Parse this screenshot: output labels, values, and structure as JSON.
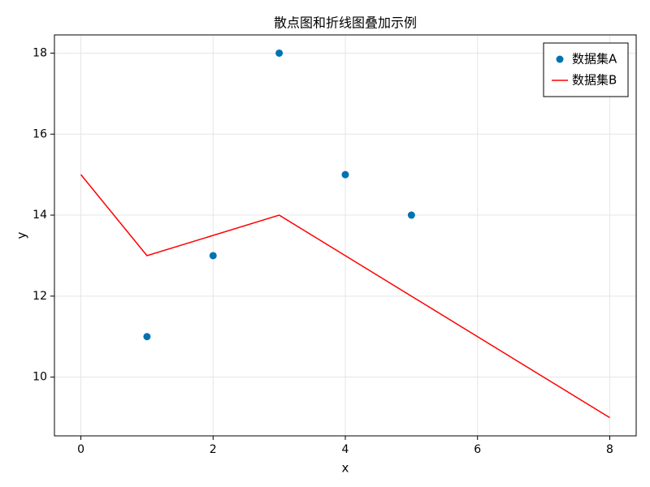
{
  "chart_data": {
    "type": "scatter",
    "title": "散点图和折线图叠加示例",
    "xlabel": "x",
    "ylabel": "y",
    "xlim": [
      -0.4,
      8.4
    ],
    "ylim": [
      8.55,
      18.45
    ],
    "xticks": [
      0,
      2,
      4,
      6,
      8
    ],
    "yticks": [
      10,
      12,
      14,
      16,
      18
    ],
    "grid": true,
    "legend": "upper right",
    "series": [
      {
        "name": "数据集A",
        "type": "scatter",
        "color": "#0072b2",
        "x": [
          1,
          2,
          3,
          4,
          5
        ],
        "values": [
          11,
          13,
          18,
          15,
          14
        ]
      },
      {
        "name": "数据集B",
        "type": "line",
        "color": "#ff0000",
        "x": [
          0,
          1,
          3,
          8
        ],
        "values": [
          15,
          13,
          14,
          9
        ]
      }
    ]
  }
}
